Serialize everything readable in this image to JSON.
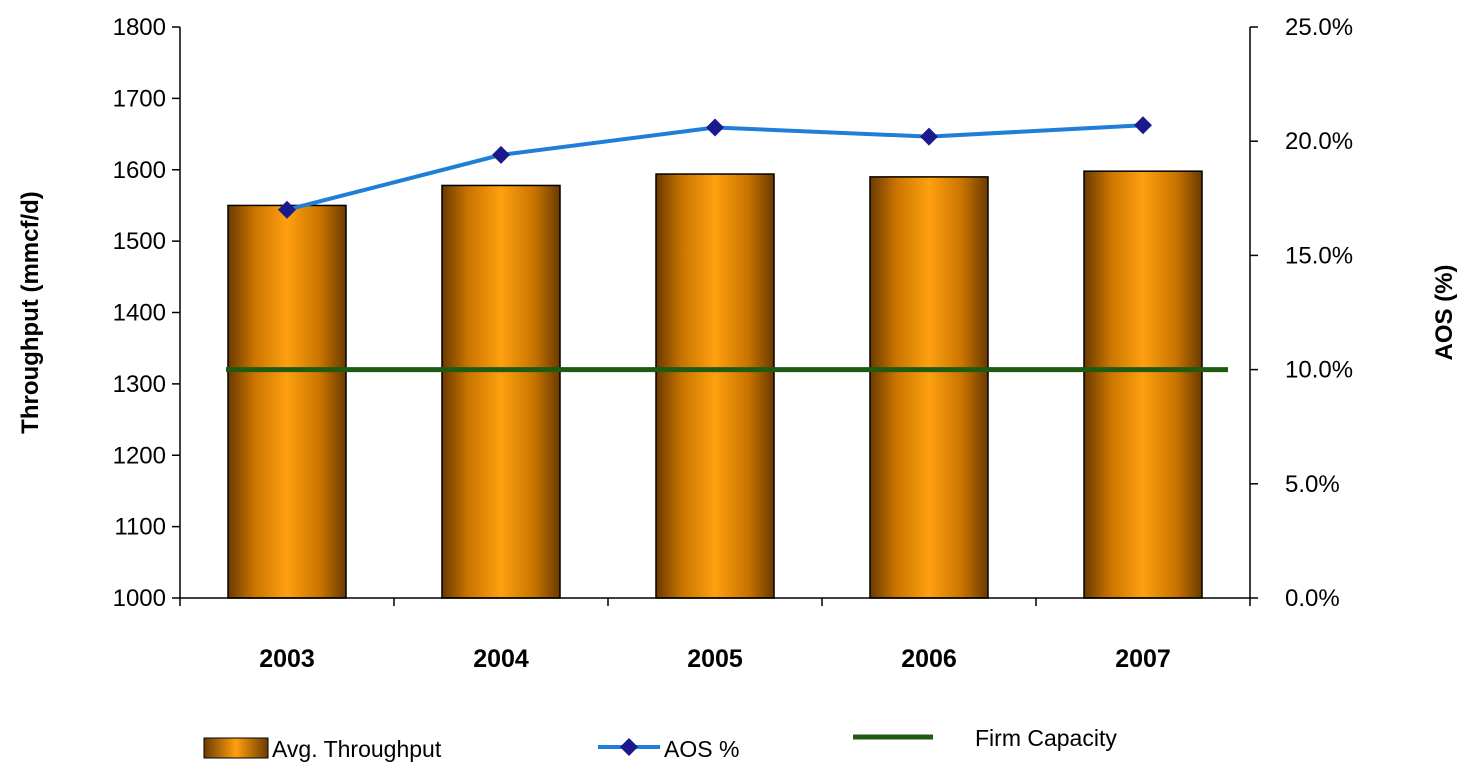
{
  "chart_data": {
    "type": "bar",
    "categories": [
      "2003",
      "2004",
      "2005",
      "2006",
      "2007"
    ],
    "series": [
      {
        "name": "Avg. Throughput",
        "type": "bar",
        "axis": "left",
        "values": [
          1550,
          1578,
          1594,
          1590,
          1598
        ]
      },
      {
        "name": "AOS %",
        "type": "line",
        "axis": "right",
        "values": [
          17.0,
          19.4,
          20.6,
          20.2,
          20.7
        ]
      },
      {
        "name": "Firm Capacity",
        "type": "line",
        "axis": "left",
        "values": [
          1320,
          1320,
          1320,
          1320,
          1320
        ]
      }
    ],
    "y_left": {
      "label": "Throughput  (mmcf/d)",
      "range": [
        1000,
        1800
      ],
      "ticks": [
        "1000",
        "1100",
        "1200",
        "1300",
        "1400",
        "1500",
        "1600",
        "1700",
        "1800"
      ]
    },
    "y_right": {
      "label": "AOS (%)",
      "range": [
        0,
        25
      ],
      "ticks": [
        "0.0%",
        "5.0%",
        "10.0%",
        "15.0%",
        "20.0%",
        "25.0%"
      ]
    },
    "legend_position": "bottom",
    "grid": false,
    "colors": {
      "bar_light": "#ff9900",
      "bar_dark": "#6b3a00",
      "aos_line": "#1f7fd8",
      "aos_marker": "#1a1a8c",
      "firm_capacity": "#1e5a12"
    },
    "legend": {
      "throughput": "Avg. Throughput",
      "aos": "AOS %",
      "firm_capacity": "Firm Capacity"
    }
  }
}
